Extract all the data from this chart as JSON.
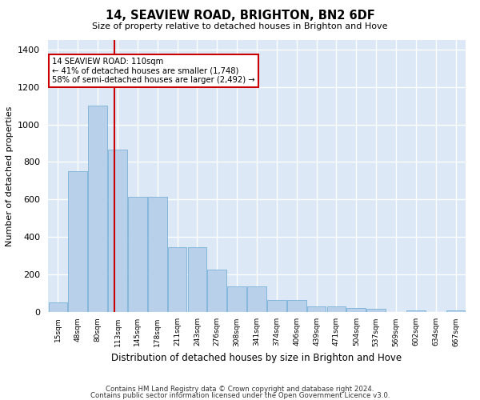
{
  "title": "14, SEAVIEW ROAD, BRIGHTON, BN2 6DF",
  "subtitle": "Size of property relative to detached houses in Brighton and Hove",
  "xlabel": "Distribution of detached houses by size in Brighton and Hove",
  "ylabel": "Number of detached properties",
  "footer_line1": "Contains HM Land Registry data © Crown copyright and database right 2024.",
  "footer_line2": "Contains public sector information licensed under the Open Government Licence v3.0.",
  "property_size_sqm": 110,
  "vline_bar_index": 2.85,
  "annotation_title": "14 SEAVIEW ROAD: 110sqm",
  "annotation_line1": "← 41% of detached houses are smaller (1,748)",
  "annotation_line2": "58% of semi-detached houses are larger (2,492) →",
  "bar_color": "#b8d0ea",
  "bar_edge_color": "#6aaad4",
  "vline_color": "#cc0000",
  "background_color": "#e8f0f8",
  "plot_bg_color": "#dce8f5",
  "grid_color": "#ffffff",
  "fig_bg_color": "#ffffff",
  "bin_labels": [
    "15sqm",
    "48sqm",
    "80sqm",
    "113sqm",
    "145sqm",
    "178sqm",
    "211sqm",
    "243sqm",
    "276sqm",
    "308sqm",
    "341sqm",
    "374sqm",
    "406sqm",
    "439sqm",
    "471sqm",
    "504sqm",
    "537sqm",
    "569sqm",
    "602sqm",
    "634sqm",
    "667sqm"
  ],
  "bar_heights": [
    50,
    750,
    1100,
    865,
    615,
    615,
    345,
    345,
    225,
    135,
    135,
    65,
    65,
    30,
    30,
    20,
    15,
    0,
    10,
    0,
    10
  ],
  "ylim": [
    0,
    1450
  ],
  "yticks": [
    0,
    200,
    400,
    600,
    800,
    1000,
    1200,
    1400
  ]
}
